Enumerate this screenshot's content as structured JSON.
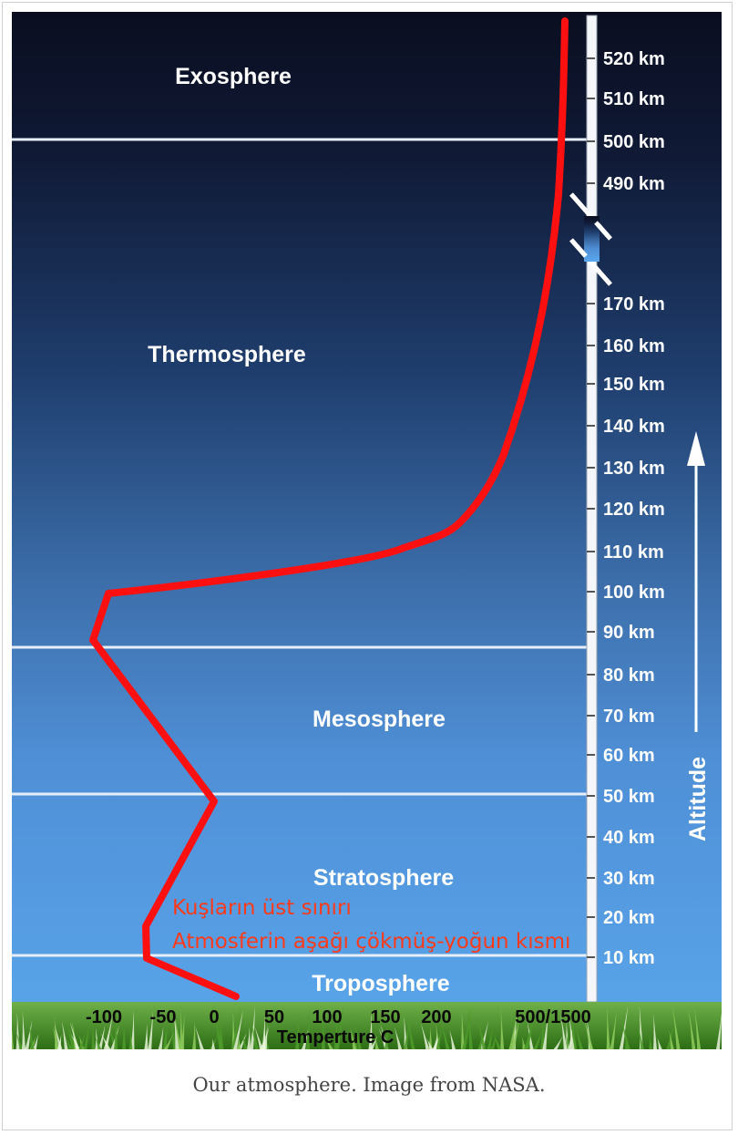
{
  "layers": {
    "exosphere": "Exosphere",
    "thermosphere": "Thermosphere",
    "mesosphere": "Mesosphere",
    "stratosphere": "Stratosphere",
    "troposphere": "Troposphere"
  },
  "altitude_ticks": [
    "520 km",
    "510 km",
    "500 km",
    "490 km",
    "170 km",
    "160 km",
    "150 km",
    "140 km",
    "130 km",
    "120 km",
    "110 km",
    "100 km",
    "90 km",
    "80 km",
    "70 km",
    "60 km",
    "50 km",
    "40 km",
    "30 km",
    "20 km",
    "10 km"
  ],
  "altitude_axis_label": "Altitude",
  "temperature_ticks": [
    "-100",
    "-50",
    "0",
    "50",
    "100",
    "150",
    "200",
    "500/1500"
  ],
  "temperature_axis_label": "Temperture  C",
  "annotations": {
    "birds_limit": "Kuşların üst sınırı",
    "dense_part": "Atmosferin aşağı çökmüş-yoğun kısmı"
  },
  "caption": "Our atmosphere. Image from NASA.",
  "colors": {
    "sky_top": "#0b1024",
    "sky_bottom": "#5aa4e8",
    "curve": "#ff1010",
    "annotation": "#ff3a1a",
    "grass": "#3e8e1f"
  },
  "chart_data": {
    "type": "line",
    "series": [
      {
        "x": [
          20,
          -60,
          -55,
          0,
          -115,
          -100,
          200,
          500,
          1500
        ],
        "y": [
          0,
          10,
          20,
          50,
          87,
          98,
          112,
          130,
          520
        ]
      }
    ]
  }
}
